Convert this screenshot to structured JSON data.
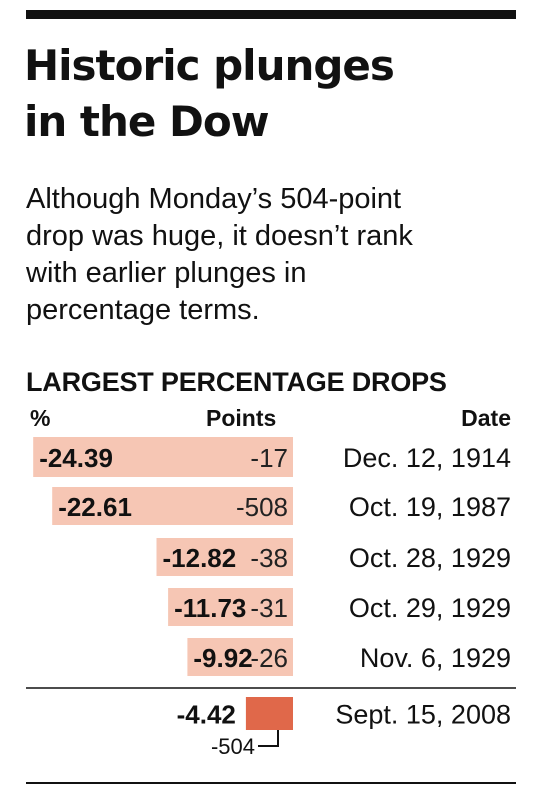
{
  "header": {
    "title_line1": "Historic plunges",
    "title_line2": "in the Dow",
    "deck_lines": [
      "Although Monday’s 504-point",
      "drop was huge, it doesn’t rank",
      "with earlier plunges in",
      "percentage terms."
    ]
  },
  "table": {
    "subhead": "LARGEST PERCENTAGE DROPS",
    "col_pct": "%",
    "col_points": "Points",
    "col_date": "Date"
  },
  "colors": {
    "bar_historic": "#f6c6b4",
    "bar_current": "#e0684a",
    "rule": "#111111"
  },
  "chart_data": {
    "type": "bar",
    "orientation": "horizontal",
    "categories": [
      "Dec. 12, 1914",
      "Oct. 19, 1987",
      "Oct. 28, 1929",
      "Oct. 29, 1929",
      "Nov. 6, 1929",
      "Sept. 15, 2008"
    ],
    "series": [
      {
        "values": [
          -24.39,
          -22.61,
          -12.82,
          -11.73,
          -9.92,
          -4.42
        ]
      },
      {
        "values": [
          -17,
          -508,
          -38,
          -31,
          -26,
          -504
        ]
      }
    ],
    "pct_labels": [
      "-24.39",
      "-22.61",
      "-12.82",
      "-11.73",
      "-9.92",
      "-4.42"
    ],
    "points_labels": [
      "-17",
      "-508",
      "-38",
      "-31",
      "-26",
      "-504"
    ],
    "highlight_index": 5,
    "grid": false
  }
}
